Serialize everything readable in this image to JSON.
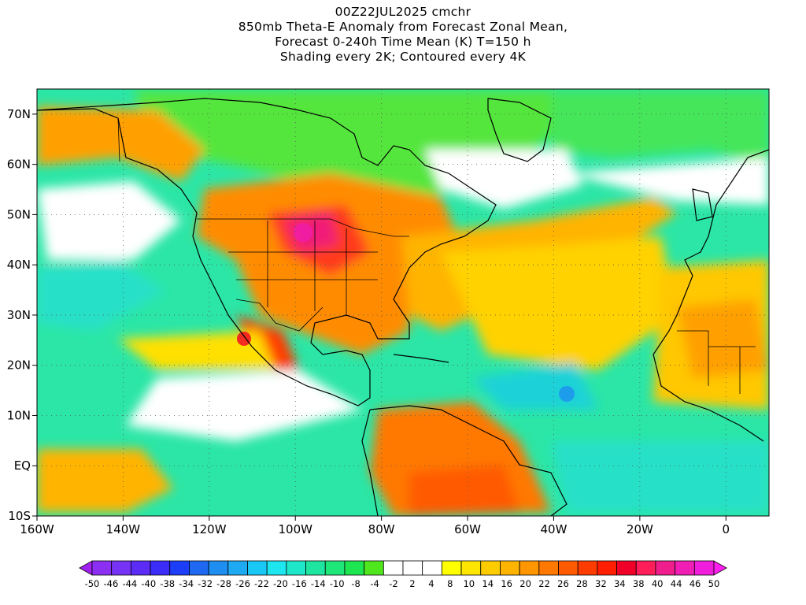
{
  "title": {
    "line1": "00Z22JUL2025 cmchr",
    "line2": "850mb Theta-E Anomaly from Forecast Zonal Mean,",
    "line3": "Forecast 0-240h Time Mean (K) T=150 h",
    "line4": "Shading every 2K; Contoured every 4K"
  },
  "map": {
    "lon_labels": [
      "160W",
      "140W",
      "120W",
      "100W",
      "80W",
      "60W",
      "40W",
      "20W",
      "0"
    ],
    "lat_labels": [
      "70N",
      "60N",
      "50N",
      "40N",
      "30N",
      "20N",
      "10N",
      "EQ",
      "10S"
    ],
    "lon_range": [
      -160,
      10
    ],
    "lat_range": [
      -10,
      75
    ],
    "gridlines": "dotted"
  },
  "colorbar": {
    "labels": [
      "-50",
      "-46",
      "-44",
      "-40",
      "-38",
      "-34",
      "-32",
      "-28",
      "-26",
      "-22",
      "-20",
      "-16",
      "-14",
      "-10",
      "-8",
      "-4",
      "-2",
      "2",
      "4",
      "8",
      "10",
      "14",
      "16",
      "20",
      "22",
      "26",
      "28",
      "32",
      "34",
      "38",
      "40",
      "44",
      "46",
      "50"
    ],
    "colors": [
      "#a020f0",
      "#8b2ff2",
      "#7633f5",
      "#5c2cf7",
      "#3c2cf8",
      "#1d3ef8",
      "#1e68f2",
      "#1e8ef0",
      "#1eaaf2",
      "#19c8f5",
      "#1ee6f0",
      "#1ee6c8",
      "#1ee6a0",
      "#1ee678",
      "#1ee650",
      "#50e61e",
      "#ffffff",
      "#ffffff",
      "#ffffff",
      "#ffff00",
      "#ffe600",
      "#ffcc00",
      "#ffb400",
      "#ff9600",
      "#ff7800",
      "#ff5a00",
      "#ff3c00",
      "#ff1e00",
      "#f00028",
      "#ff1e5a",
      "#f01e8c",
      "#f01eb4",
      "#f01edc",
      "#ff1ef0"
    ]
  }
}
